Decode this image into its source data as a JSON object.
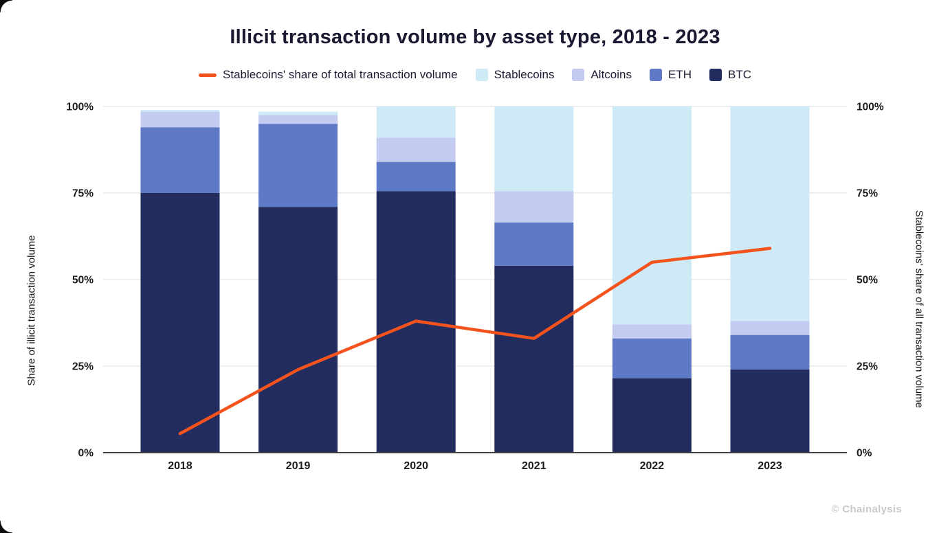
{
  "title": "Illicit transaction volume by asset type, 2018 - 2023",
  "footer": {
    "brand": "© Chainalysis"
  },
  "axes": {
    "left_label": "Share of illicit transaction volume",
    "right_label": "Stablecoins' share of all transaction volume",
    "tick_values": [
      0,
      25,
      50,
      75,
      100
    ],
    "tick_suffix": "%"
  },
  "legend": {
    "line_label": "Stablecoins' share of total transaction volume",
    "items": [
      {
        "label": "Stablecoins",
        "color": "#cfeaf7"
      },
      {
        "label": "Altcoins",
        "color": "#c3ccf0"
      },
      {
        "label": "ETH",
        "color": "#5e79c6"
      },
      {
        "label": "BTC",
        "color": "#232c5f"
      }
    ]
  },
  "style": {
    "grid": "#dcdcdc",
    "baseline": "#404040",
    "accent_orange": "#f4531e"
  },
  "chart_data": {
    "type": "bar",
    "stacked": true,
    "title": "Illicit transaction volume by asset type, 2018 - 2023",
    "xlabel": "",
    "ylabel_left": "Share of illicit transaction volume",
    "ylabel_right": "Stablecoins' share of all transaction volume",
    "ylim": [
      0,
      100
    ],
    "grid": true,
    "legend_position": "top",
    "categories": [
      "2018",
      "2019",
      "2020",
      "2021",
      "2022",
      "2023"
    ],
    "series": [
      {
        "name": "BTC",
        "color": "#232c5f",
        "values": [
          75,
          71,
          75.5,
          54,
          21.5,
          24
        ]
      },
      {
        "name": "ETH",
        "color": "#5e79c6",
        "values": [
          19,
          24,
          8.5,
          12.5,
          11.5,
          10
        ]
      },
      {
        "name": "Altcoins",
        "color": "#c3ccf0",
        "values": [
          4.5,
          2.5,
          7,
          9,
          4,
          4
        ]
      },
      {
        "name": "Stablecoins",
        "color": "#cfeaf7",
        "values": [
          0.5,
          1,
          9,
          24.5,
          63,
          62
        ]
      }
    ],
    "line_series": {
      "name": "Stablecoins' share of total transaction volume",
      "color": "#f4531e",
      "axis": "right",
      "values": [
        5.5,
        24,
        38,
        33,
        55,
        59
      ]
    }
  }
}
